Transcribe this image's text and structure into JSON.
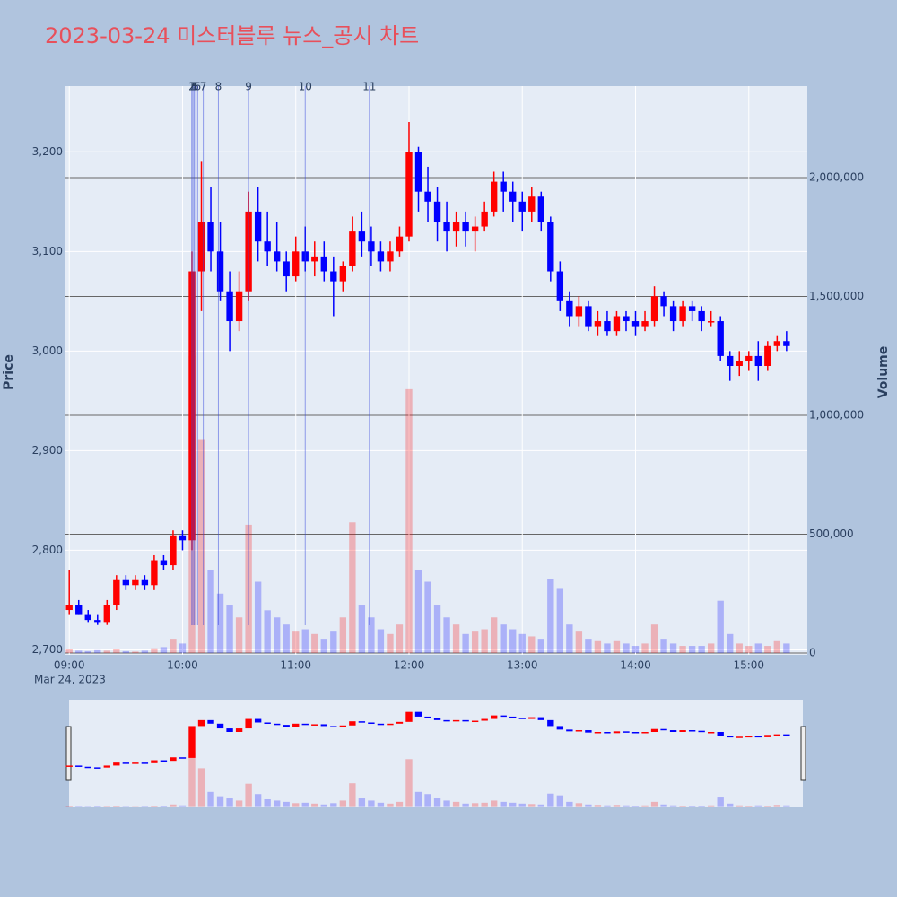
{
  "chart_data": {
    "type": "candlestick",
    "title": "2023-03-24 미스터블루 뉴스_공시 차트",
    "ylabel": "Price",
    "y2label": "Volume",
    "x_date_label": "Mar 24, 2023",
    "increasing_color": "#ff0000",
    "decreasing_color": "#0000ff",
    "x": [
      "09:00",
      "09:05",
      "09:10",
      "09:15",
      "09:20",
      "09:25",
      "09:30",
      "09:35",
      "09:40",
      "09:45",
      "09:50",
      "09:55",
      "10:00",
      "10:05",
      "10:10",
      "10:15",
      "10:20",
      "10:25",
      "10:30",
      "10:35",
      "10:40",
      "10:45",
      "10:50",
      "10:55",
      "11:00",
      "11:05",
      "11:10",
      "11:15",
      "11:20",
      "11:25",
      "11:30",
      "11:35",
      "11:40",
      "11:45",
      "11:50",
      "11:55",
      "12:00",
      "12:05",
      "12:10",
      "12:15",
      "12:20",
      "12:25",
      "12:30",
      "12:35",
      "12:40",
      "12:45",
      "12:50",
      "12:55",
      "13:00",
      "13:05",
      "13:10",
      "13:15",
      "13:20",
      "13:25",
      "13:30",
      "13:35",
      "13:40",
      "13:45",
      "13:50",
      "13:55",
      "14:00",
      "14:05",
      "14:10",
      "14:15",
      "14:20",
      "14:25",
      "14:30",
      "14:35",
      "14:40",
      "14:45",
      "14:50",
      "14:55",
      "15:00",
      "15:05",
      "15:10",
      "15:15",
      "15:20"
    ],
    "open": [
      2740,
      2745,
      2735,
      2730,
      2728,
      2745,
      2770,
      2765,
      2770,
      2765,
      2790,
      2785,
      2815,
      2810,
      3080,
      3130,
      3100,
      3060,
      3030,
      3060,
      3140,
      3110,
      3100,
      3090,
      3075,
      3100,
      3090,
      3095,
      3080,
      3070,
      3085,
      3120,
      3110,
      3100,
      3090,
      3100,
      3115,
      3200,
      3160,
      3150,
      3130,
      3120,
      3130,
      3120,
      3125,
      3140,
      3170,
      3160,
      3150,
      3140,
      3155,
      3130,
      3080,
      3050,
      3035,
      3045,
      3025,
      3030,
      3020,
      3035,
      3030,
      3025,
      3030,
      3055,
      3045,
      3030,
      3045,
      3040,
      3030,
      3030,
      2995,
      2985,
      2990,
      2995,
      2985,
      3005,
      3010
    ],
    "high": [
      2780,
      2750,
      2740,
      2735,
      2750,
      2775,
      2775,
      2775,
      2775,
      2795,
      2795,
      2820,
      2820,
      3100,
      3190,
      3165,
      3130,
      3080,
      3080,
      3160,
      3165,
      3140,
      3130,
      3100,
      3115,
      3125,
      3110,
      3110,
      3095,
      3090,
      3135,
      3140,
      3125,
      3110,
      3110,
      3125,
      3230,
      3205,
      3185,
      3165,
      3150,
      3140,
      3140,
      3135,
      3150,
      3180,
      3180,
      3170,
      3160,
      3165,
      3160,
      3135,
      3090,
      3060,
      3055,
      3050,
      3040,
      3040,
      3040,
      3040,
      3040,
      3040,
      3065,
      3060,
      3050,
      3050,
      3050,
      3045,
      3040,
      3035,
      3000,
      3000,
      3000,
      3010,
      3010,
      3015,
      3020
    ],
    "low": [
      2735,
      2735,
      2728,
      2725,
      2725,
      2740,
      2760,
      2760,
      2760,
      2760,
      2780,
      2780,
      2800,
      2800,
      3040,
      3080,
      3050,
      3000,
      3020,
      3050,
      3090,
      3085,
      3080,
      3060,
      3070,
      3080,
      3075,
      3070,
      3035,
      3060,
      3080,
      3095,
      3085,
      3080,
      3080,
      3095,
      3110,
      3140,
      3130,
      3110,
      3100,
      3105,
      3105,
      3100,
      3120,
      3135,
      3140,
      3130,
      3120,
      3130,
      3120,
      3070,
      3040,
      3025,
      3025,
      3020,
      3015,
      3015,
      3015,
      3020,
      3015,
      3020,
      3025,
      3035,
      3020,
      3025,
      3030,
      3020,
      3025,
      2990,
      2970,
      2975,
      2980,
      2970,
      2980,
      3000,
      3000
    ],
    "close": [
      2745,
      2735,
      2730,
      2728,
      2745,
      2770,
      2765,
      2770,
      2765,
      2790,
      2785,
      2815,
      2810,
      3080,
      3130,
      3100,
      3060,
      3030,
      3060,
      3140,
      3110,
      3100,
      3090,
      3075,
      3100,
      3090,
      3095,
      3080,
      3070,
      3085,
      3120,
      3110,
      3100,
      3090,
      3100,
      3115,
      3200,
      3160,
      3150,
      3130,
      3120,
      3130,
      3120,
      3125,
      3140,
      3170,
      3160,
      3150,
      3140,
      3155,
      3130,
      3080,
      3050,
      3035,
      3045,
      3025,
      3030,
      3020,
      3035,
      3030,
      3025,
      3030,
      3055,
      3045,
      3030,
      3045,
      3040,
      3030,
      3030,
      2995,
      2985,
      2990,
      2995,
      2985,
      3005,
      3010,
      3005
    ],
    "volume": [
      15000,
      10000,
      8000,
      12000,
      10000,
      15000,
      8000,
      6000,
      10000,
      20000,
      25000,
      60000,
      40000,
      1250000,
      900000,
      350000,
      250000,
      200000,
      150000,
      540000,
      300000,
      180000,
      150000,
      120000,
      90000,
      100000,
      80000,
      60000,
      90000,
      150000,
      550000,
      200000,
      150000,
      100000,
      80000,
      120000,
      1110000,
      350000,
      300000,
      200000,
      150000,
      120000,
      80000,
      90000,
      100000,
      150000,
      120000,
      100000,
      80000,
      70000,
      60000,
      310000,
      270000,
      120000,
      90000,
      60000,
      50000,
      40000,
      50000,
      40000,
      30000,
      40000,
      120000,
      60000,
      40000,
      30000,
      30000,
      30000,
      40000,
      220000,
      80000,
      40000,
      30000,
      40000,
      30000,
      50000,
      40000
    ],
    "annotations": [
      {
        "x": "10:05",
        "text": "1"
      },
      {
        "x": "10:05",
        "text": "2"
      },
      {
        "x": "10:06",
        "text": "3"
      },
      {
        "x": "10:06",
        "text": "4"
      },
      {
        "x": "10:07",
        "text": "5"
      },
      {
        "x": "10:08",
        "text": "6"
      },
      {
        "x": "10:11",
        "text": "7"
      },
      {
        "x": "10:19",
        "text": "8"
      },
      {
        "x": "10:35",
        "text": "9"
      },
      {
        "x": "11:05",
        "text": "10"
      },
      {
        "x": "11:39",
        "text": "11"
      }
    ],
    "xlim": [
      "08:58",
      "15:31"
    ],
    "xticks": [
      "09:00",
      "10:00",
      "11:00",
      "12:00",
      "13:00",
      "14:00",
      "15:00"
    ],
    "ylim": [
      2695,
      3266
    ],
    "yticks": [
      {
        "value": 2700,
        "label": "2,700"
      },
      {
        "value": 2800,
        "label": "2,800"
      },
      {
        "value": 2900,
        "label": "2,900"
      },
      {
        "value": 3000,
        "label": "3,000"
      },
      {
        "value": 3100,
        "label": "3,100"
      },
      {
        "value": 3200,
        "label": "3,200"
      }
    ],
    "y2lim": [
      -7500,
      2385000
    ],
    "y2ticks": [
      0,
      {
        "value": 500000,
        "label": "500,000"
      },
      {
        "value": 1000000,
        "label": "1,000,000"
      },
      {
        "value": 1500000,
        "label": "1,500,000"
      },
      {
        "value": 2000000,
        "label": "2,000,000"
      }
    ],
    "grid": true,
    "rangeslider": true
  }
}
